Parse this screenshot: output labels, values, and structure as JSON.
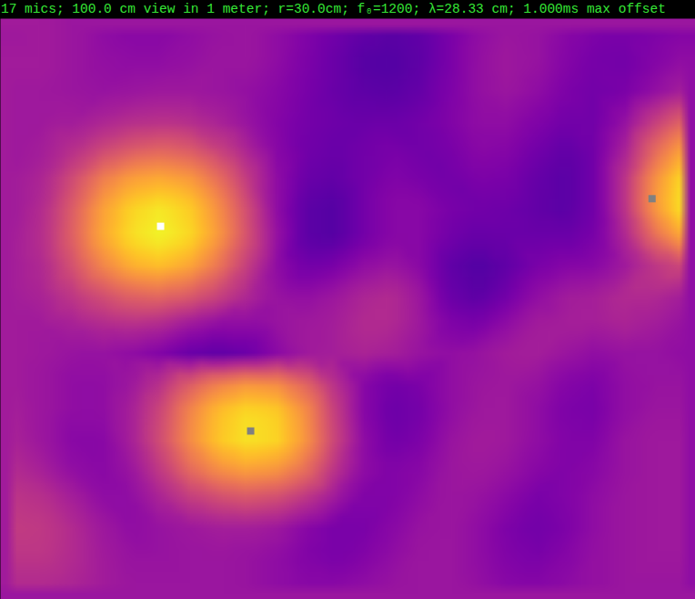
{
  "chart_data": {
    "type": "heatmap",
    "title": "17 mics; 100.0 cm view in 1 meter; r=30.0cm; f₀=1200; λ=28.33 cm; 1.000ms max offset",
    "xlim": [
      0,
      24
    ],
    "ylim": [
      0,
      20
    ],
    "tick_labels": false,
    "color_range": [
      0,
      1
    ],
    "color": "plasma",
    "marker": "square",
    "cells": [
      [
        0.34,
        0.35,
        0.33,
        0.3,
        0.28,
        0.28,
        0.3,
        0.32,
        0.33,
        0.3,
        0.26,
        0.22,
        0.18,
        0.16,
        0.18,
        0.24,
        0.3,
        0.33,
        0.32,
        0.28,
        0.25,
        0.24,
        0.25,
        0.27
      ],
      [
        0.35,
        0.35,
        0.33,
        0.31,
        0.3,
        0.3,
        0.31,
        0.33,
        0.33,
        0.3,
        0.25,
        0.2,
        0.15,
        0.14,
        0.17,
        0.24,
        0.31,
        0.34,
        0.32,
        0.27,
        0.23,
        0.22,
        0.26,
        0.3
      ],
      [
        0.34,
        0.34,
        0.33,
        0.32,
        0.33,
        0.34,
        0.34,
        0.33,
        0.31,
        0.28,
        0.24,
        0.2,
        0.17,
        0.16,
        0.19,
        0.25,
        0.31,
        0.33,
        0.3,
        0.25,
        0.22,
        0.24,
        0.3,
        0.36
      ],
      [
        0.34,
        0.34,
        0.35,
        0.38,
        0.41,
        0.42,
        0.41,
        0.37,
        0.32,
        0.27,
        0.23,
        0.21,
        0.2,
        0.2,
        0.22,
        0.26,
        0.3,
        0.3,
        0.26,
        0.22,
        0.22,
        0.3,
        0.45,
        0.58
      ],
      [
        0.34,
        0.36,
        0.42,
        0.5,
        0.57,
        0.6,
        0.57,
        0.48,
        0.38,
        0.28,
        0.22,
        0.2,
        0.22,
        0.24,
        0.22,
        0.24,
        0.28,
        0.27,
        0.22,
        0.18,
        0.22,
        0.36,
        0.6,
        0.78
      ],
      [
        0.35,
        0.39,
        0.52,
        0.68,
        0.78,
        0.81,
        0.77,
        0.64,
        0.46,
        0.3,
        0.2,
        0.18,
        0.22,
        0.26,
        0.24,
        0.22,
        0.25,
        0.24,
        0.19,
        0.16,
        0.22,
        0.42,
        0.72,
        0.92
      ],
      [
        0.35,
        0.41,
        0.58,
        0.78,
        0.91,
        0.96,
        0.9,
        0.74,
        0.52,
        0.3,
        0.17,
        0.15,
        0.22,
        0.28,
        0.28,
        0.24,
        0.22,
        0.21,
        0.18,
        0.16,
        0.22,
        0.42,
        0.74,
        0.95
      ],
      [
        0.36,
        0.42,
        0.6,
        0.8,
        0.94,
        0.99,
        0.93,
        0.77,
        0.54,
        0.32,
        0.17,
        0.15,
        0.22,
        0.28,
        0.28,
        0.22,
        0.19,
        0.2,
        0.2,
        0.2,
        0.24,
        0.38,
        0.62,
        0.8
      ],
      [
        0.36,
        0.4,
        0.54,
        0.7,
        0.82,
        0.86,
        0.8,
        0.66,
        0.47,
        0.3,
        0.22,
        0.24,
        0.3,
        0.33,
        0.28,
        0.18,
        0.14,
        0.18,
        0.24,
        0.27,
        0.28,
        0.34,
        0.44,
        0.5
      ],
      [
        0.36,
        0.38,
        0.45,
        0.53,
        0.6,
        0.62,
        0.58,
        0.5,
        0.4,
        0.32,
        0.3,
        0.33,
        0.38,
        0.4,
        0.33,
        0.2,
        0.16,
        0.22,
        0.3,
        0.35,
        0.36,
        0.4,
        0.4,
        0.36
      ],
      [
        0.35,
        0.35,
        0.37,
        0.4,
        0.42,
        0.4,
        0.34,
        0.3,
        0.3,
        0.32,
        0.34,
        0.36,
        0.4,
        0.4,
        0.34,
        0.26,
        0.24,
        0.3,
        0.35,
        0.36,
        0.36,
        0.38,
        0.36,
        0.32
      ],
      [
        0.35,
        0.34,
        0.32,
        0.32,
        0.3,
        0.26,
        0.2,
        0.17,
        0.2,
        0.28,
        0.34,
        0.36,
        0.38,
        0.36,
        0.32,
        0.3,
        0.32,
        0.35,
        0.36,
        0.33,
        0.3,
        0.32,
        0.32,
        0.3
      ],
      [
        0.35,
        0.33,
        0.3,
        0.3,
        0.33,
        0.42,
        0.56,
        0.68,
        0.74,
        0.72,
        0.6,
        0.42,
        0.28,
        0.22,
        0.25,
        0.3,
        0.33,
        0.34,
        0.32,
        0.27,
        0.25,
        0.3,
        0.32,
        0.32
      ],
      [
        0.36,
        0.33,
        0.3,
        0.3,
        0.36,
        0.5,
        0.7,
        0.86,
        0.93,
        0.9,
        0.74,
        0.48,
        0.28,
        0.2,
        0.23,
        0.3,
        0.34,
        0.34,
        0.3,
        0.25,
        0.24,
        0.3,
        0.33,
        0.33
      ],
      [
        0.37,
        0.33,
        0.28,
        0.28,
        0.36,
        0.52,
        0.72,
        0.88,
        0.95,
        0.92,
        0.76,
        0.5,
        0.3,
        0.22,
        0.25,
        0.32,
        0.35,
        0.34,
        0.3,
        0.26,
        0.26,
        0.32,
        0.34,
        0.34
      ],
      [
        0.4,
        0.36,
        0.3,
        0.28,
        0.33,
        0.46,
        0.62,
        0.74,
        0.79,
        0.76,
        0.64,
        0.44,
        0.3,
        0.26,
        0.28,
        0.33,
        0.34,
        0.32,
        0.28,
        0.26,
        0.28,
        0.32,
        0.34,
        0.34
      ],
      [
        0.44,
        0.42,
        0.36,
        0.3,
        0.3,
        0.38,
        0.46,
        0.52,
        0.55,
        0.52,
        0.44,
        0.34,
        0.26,
        0.26,
        0.3,
        0.33,
        0.32,
        0.28,
        0.24,
        0.26,
        0.3,
        0.33,
        0.34,
        0.34
      ],
      [
        0.46,
        0.45,
        0.4,
        0.34,
        0.3,
        0.32,
        0.34,
        0.36,
        0.36,
        0.34,
        0.28,
        0.24,
        0.24,
        0.28,
        0.32,
        0.33,
        0.3,
        0.25,
        0.22,
        0.25,
        0.3,
        0.33,
        0.34,
        0.34
      ],
      [
        0.44,
        0.44,
        0.4,
        0.35,
        0.32,
        0.32,
        0.33,
        0.33,
        0.32,
        0.3,
        0.26,
        0.24,
        0.26,
        0.3,
        0.33,
        0.33,
        0.3,
        0.26,
        0.24,
        0.27,
        0.31,
        0.33,
        0.34,
        0.34
      ],
      [
        0.4,
        0.4,
        0.38,
        0.35,
        0.33,
        0.33,
        0.33,
        0.33,
        0.32,
        0.3,
        0.28,
        0.28,
        0.3,
        0.32,
        0.33,
        0.33,
        0.31,
        0.28,
        0.27,
        0.29,
        0.31,
        0.33,
        0.33,
        0.33
      ]
    ],
    "points": [
      {
        "x": 5.53,
        "y": 7.15,
        "color": "#ffffff"
      },
      {
        "x": 8.64,
        "y": 14.2,
        "color": "#808080"
      },
      {
        "x": 22.5,
        "y": 6.2,
        "color": "#808080"
      }
    ]
  }
}
